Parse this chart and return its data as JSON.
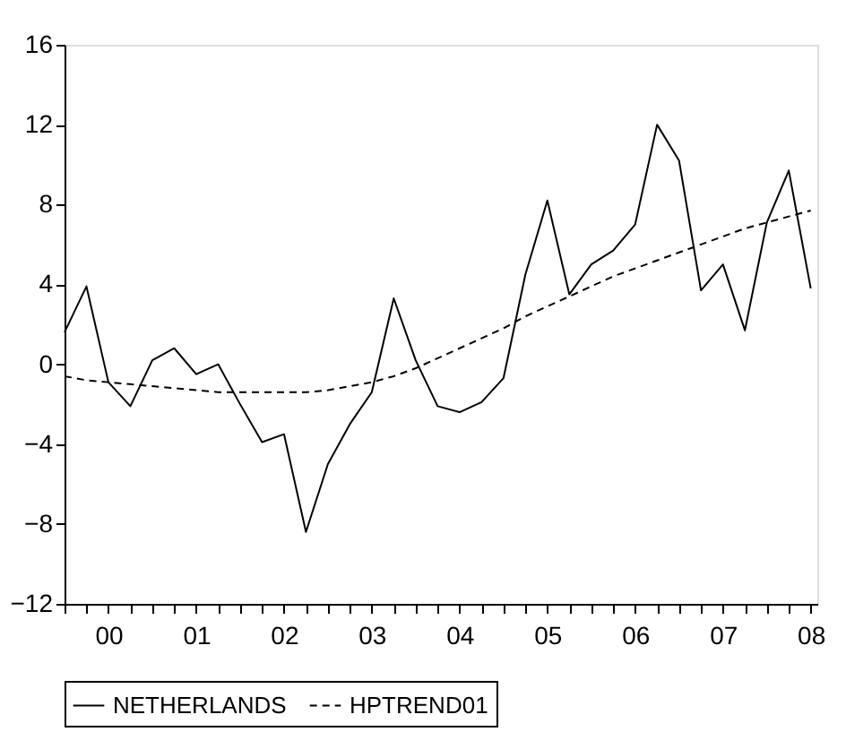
{
  "chart_data": {
    "type": "line",
    "categories": [
      null,
      null,
      "00",
      null,
      null,
      null,
      "01",
      null,
      null,
      null,
      "02",
      null,
      null,
      null,
      "03",
      null,
      null,
      null,
      "04",
      null,
      null,
      null,
      "05",
      null,
      null,
      null,
      "06",
      null,
      null,
      null,
      "07",
      null,
      null,
      null,
      "08"
    ],
    "ylim": [
      -12,
      16
    ],
    "yticks": [
      -12,
      -8,
      -4,
      0,
      4,
      8,
      12,
      16
    ],
    "grid": false,
    "legend": "bottom",
    "marker": "none",
    "series": [
      {
        "name": "NETHERLANDS",
        "color": "#000000",
        "line_style": "solid",
        "values": [
          1.6,
          3.9,
          -0.9,
          -2.1,
          0.2,
          0.8,
          -0.5,
          0.0,
          -2.0,
          -3.9,
          -3.5,
          -8.4,
          -5.0,
          -3.0,
          -1.4,
          3.3,
          0.2,
          -2.1,
          -2.4,
          -1.9,
          -0.7,
          4.5,
          8.2,
          3.5,
          5.0,
          5.7,
          7.0,
          12.0,
          10.2,
          3.7,
          5.0,
          1.7,
          7.1,
          9.7,
          3.8
        ]
      },
      {
        "name": "HPTREND01",
        "color": "#000000",
        "line_style": "dashed",
        "values": [
          -0.6,
          -0.8,
          -0.9,
          -1.0,
          -1.1,
          -1.2,
          -1.3,
          -1.4,
          -1.4,
          -1.4,
          -1.4,
          -1.4,
          -1.3,
          -1.1,
          -0.9,
          -0.6,
          -0.2,
          0.3,
          0.8,
          1.3,
          1.8,
          2.4,
          2.9,
          3.4,
          3.9,
          4.4,
          4.8,
          5.2,
          5.6,
          6.0,
          6.4,
          6.8,
          7.1,
          7.4,
          7.7
        ]
      }
    ]
  }
}
